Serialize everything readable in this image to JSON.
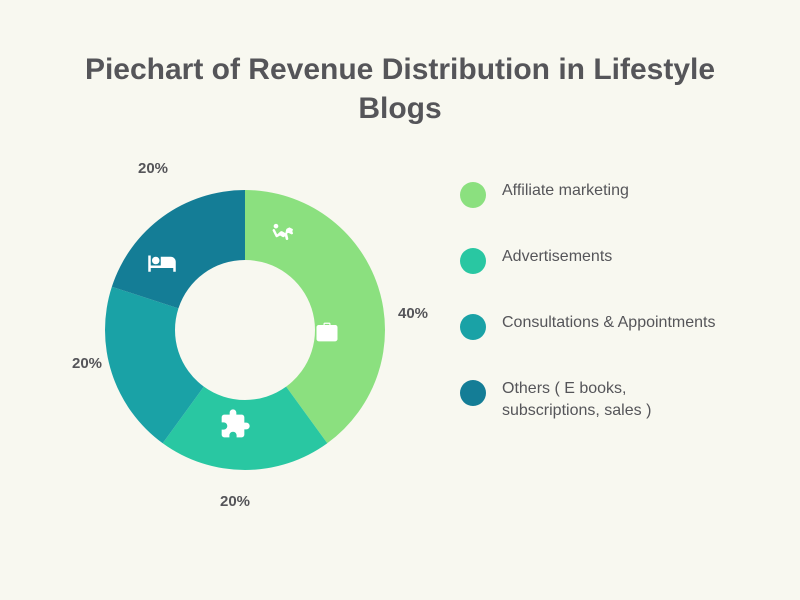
{
  "title": "Piechart of Revenue Distribution in Lifestyle Blogs",
  "chart": {
    "type": "donut",
    "background": "#f8f8f0",
    "title_color": "#555559",
    "title_fontsize": 30,
    "label_color": "#555559",
    "label_fontsize": 15,
    "legend_fontsize": 16,
    "donut_outer_radius": 140,
    "donut_inner_radius": 70,
    "icon_color": "#ffffff",
    "slices": [
      {
        "id": "affiliate",
        "label": "Affiliate marketing",
        "value": 40,
        "pct": "40%",
        "color": "#8be07f",
        "icon": "fitness"
      },
      {
        "id": "ads",
        "label": "Advertisements",
        "value": 20,
        "pct": "20%",
        "color": "#29c7a2",
        "icon": "puzzle"
      },
      {
        "id": "consult",
        "label": "Consultations & Appointments",
        "value": 20,
        "pct": "20%",
        "color": "#1aa2a6",
        "icon": null
      },
      {
        "id": "others",
        "label": "Others ( E books, subscriptions, sales )",
        "value": 20,
        "pct": "20%",
        "color": "#147d96",
        "icon": "bed"
      }
    ],
    "extra_icon": {
      "slice": "affiliate",
      "icon": "briefcase"
    }
  },
  "slice_labels": {
    "affiliate": "40%",
    "ads": "20%",
    "consult": "20%",
    "others": "20%"
  },
  "legend": {
    "affiliate": "Affiliate marketing",
    "ads": "Advertisements",
    "consult": "Consultations & Appointments",
    "others": "Others ( E books, subscriptions, sales )"
  }
}
